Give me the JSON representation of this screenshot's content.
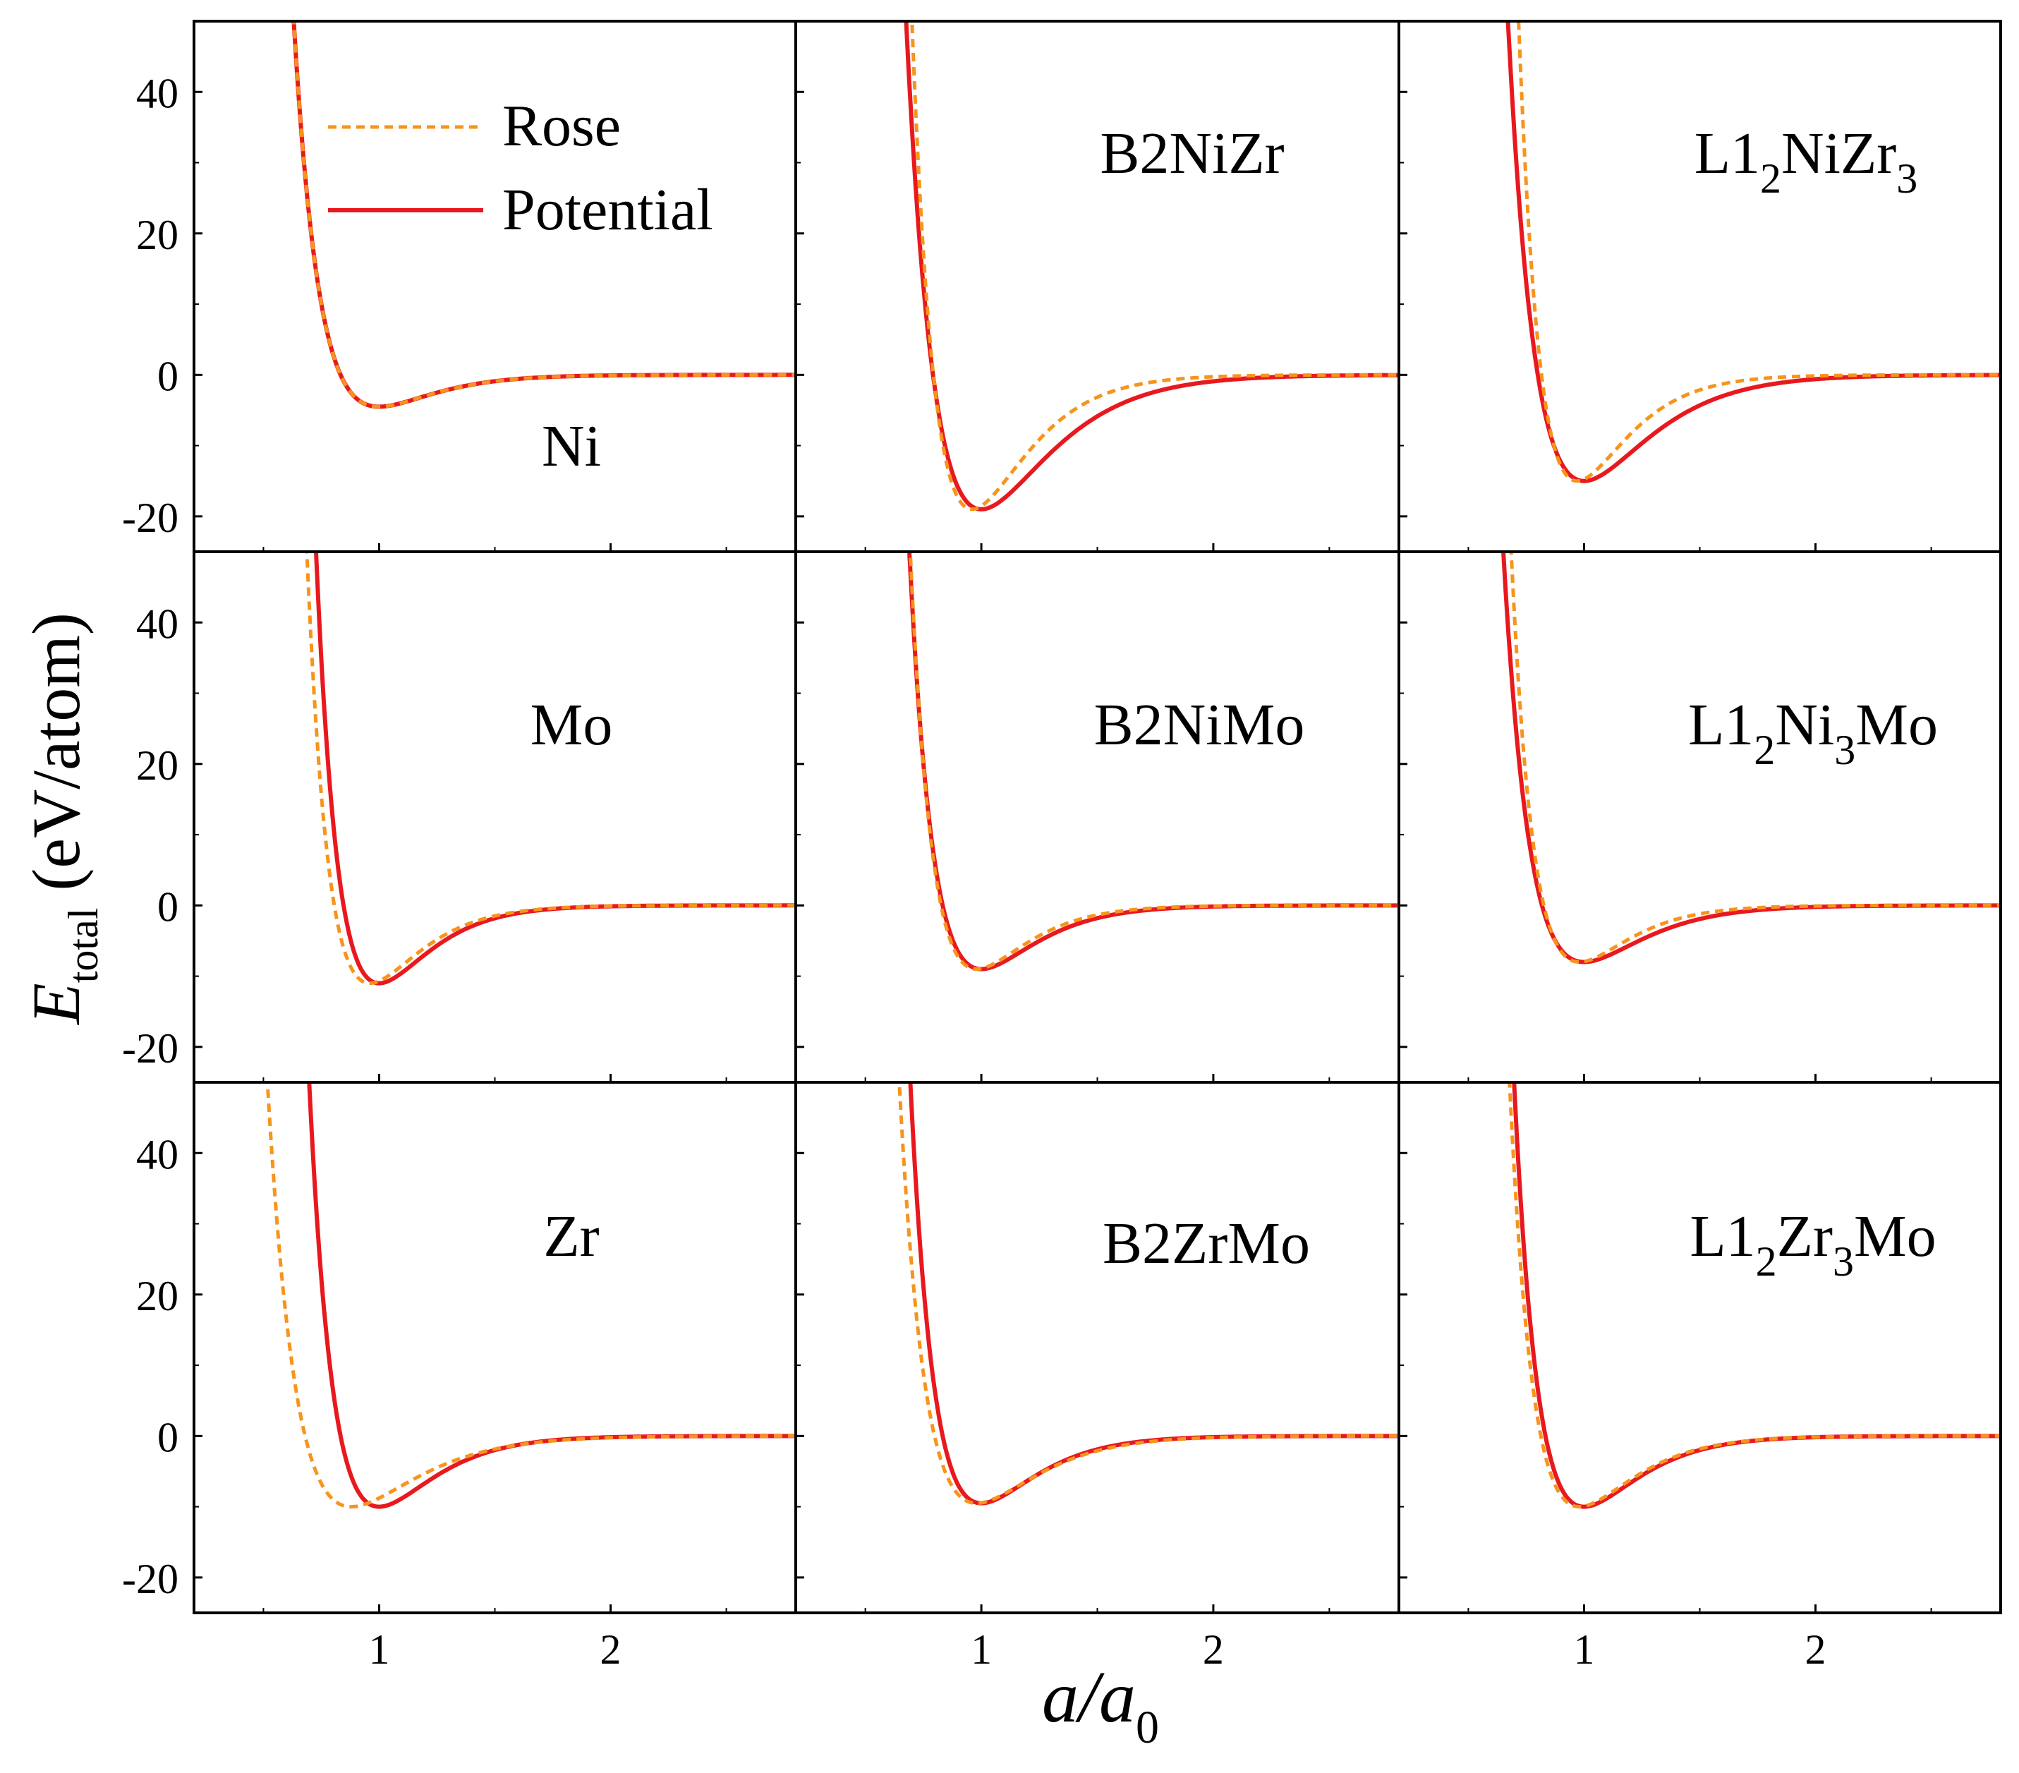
{
  "figure": {
    "ylabel": "E",
    "ylabel_sub": "total",
    "ylabel_unit": " (eV/atom)",
    "xlabel": "a/a",
    "xlabel_sub": "0"
  },
  "legend": {
    "rose": "Rose",
    "potential": "Potential"
  },
  "colors": {
    "rose": "#F7941D",
    "potential": "#E8191E",
    "axis": "#000000"
  },
  "axes": {
    "xlim": [
      0.2,
      2.8
    ],
    "ylim": [
      -25,
      50
    ],
    "yticks": [
      "40",
      "20",
      "0",
      "-20"
    ],
    "xticks": [
      "1",
      "2"
    ]
  },
  "chart_data": [
    {
      "type": "line",
      "label": "Ni",
      "parts": [
        [
          "Ni",
          ""
        ]
      ],
      "min": -4.5,
      "rose_shift": 0.0,
      "rose_alpha": 6.0,
      "pot_alpha": 6.0,
      "series": [
        {
          "name": "Rose"
        },
        {
          "name": "Potential"
        }
      ]
    },
    {
      "type": "line",
      "label": "B2NiZr",
      "parts": [
        [
          "B2NiZr",
          ""
        ]
      ],
      "min": -19.0,
      "rose_shift": -0.04,
      "rose_alpha": 6.0,
      "pot_alpha": 4.8,
      "series": [
        {
          "name": "Rose"
        },
        {
          "name": "Potential"
        }
      ]
    },
    {
      "type": "line",
      "label": "L12NiZr3",
      "parts": [
        [
          "L1",
          ""
        ],
        [
          "2",
          "sub"
        ],
        [
          "NiZr",
          ""
        ],
        [
          "3",
          "sub"
        ]
      ],
      "min": -15.0,
      "rose_shift": -0.03,
      "rose_alpha": 6.5,
      "pot_alpha": 5.0,
      "series": [
        {
          "name": "Rose"
        },
        {
          "name": "Potential"
        }
      ]
    },
    {
      "type": "line",
      "label": "Mo",
      "parts": [
        [
          "Mo",
          ""
        ]
      ],
      "min": -11.0,
      "rose_shift": -0.04,
      "rose_alpha": 6.5,
      "pot_alpha": 6.5,
      "series": [
        {
          "name": "Rose"
        },
        {
          "name": "Potential"
        }
      ]
    },
    {
      "type": "line",
      "label": "B2NiMo",
      "parts": [
        [
          "B2NiMo",
          ""
        ]
      ],
      "min": -9.0,
      "rose_shift": -0.02,
      "rose_alpha": 6.5,
      "pot_alpha": 6.0,
      "series": [
        {
          "name": "Rose"
        },
        {
          "name": "Potential"
        }
      ]
    },
    {
      "type": "line",
      "label": "L12Ni3Mo",
      "parts": [
        [
          "L1",
          ""
        ],
        [
          "2",
          "sub"
        ],
        [
          "Ni",
          ""
        ],
        [
          "3",
          "sub"
        ],
        [
          "Mo",
          ""
        ]
      ],
      "min": -8.0,
      "rose_shift": -0.02,
      "rose_alpha": 6.5,
      "pot_alpha": 5.5,
      "series": [
        {
          "name": "Rose"
        },
        {
          "name": "Potential"
        }
      ]
    },
    {
      "type": "line",
      "label": "Zr",
      "parts": [
        [
          "Zr",
          ""
        ]
      ],
      "min": -10.0,
      "rose_shift": -0.12,
      "rose_alpha": 5.0,
      "pot_alpha": 6.0,
      "series": [
        {
          "name": "Rose"
        },
        {
          "name": "Potential"
        }
      ]
    },
    {
      "type": "line",
      "label": "B2ZrMo",
      "parts": [
        [
          "B2ZrMo",
          ""
        ]
      ],
      "min": -9.5,
      "rose_shift": -0.02,
      "rose_alpha": 5.5,
      "pot_alpha": 6.0,
      "series": [
        {
          "name": "Rose"
        },
        {
          "name": "Potential"
        }
      ]
    },
    {
      "type": "line",
      "label": "L12Zr3Mo",
      "parts": [
        [
          "L1",
          ""
        ],
        [
          "2",
          "sub"
        ],
        [
          "Zr",
          ""
        ],
        [
          "3",
          "sub"
        ],
        [
          "Mo",
          ""
        ]
      ],
      "min": -10.0,
      "rose_shift": -0.02,
      "rose_alpha": 6.0,
      "pot_alpha": 6.0,
      "series": [
        {
          "name": "Rose"
        },
        {
          "name": "Potential"
        }
      ]
    }
  ]
}
